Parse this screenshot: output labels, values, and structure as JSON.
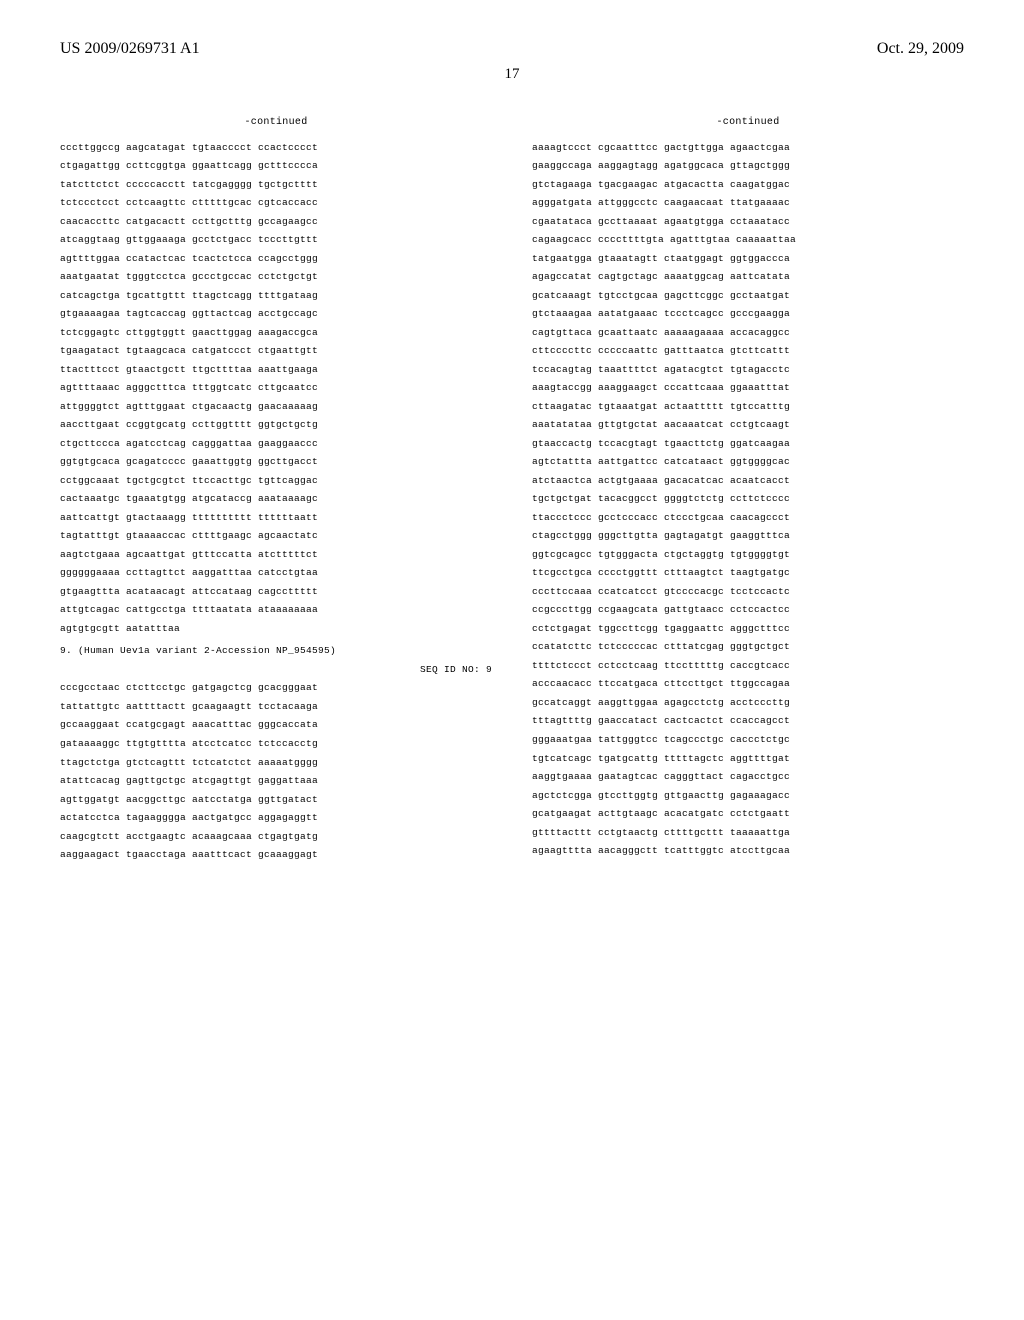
{
  "header": {
    "patent_number": "US 2009/0269731 A1",
    "date": "Oct. 29, 2009",
    "page_number": "17"
  },
  "continued_label": "-continued",
  "left_column": {
    "lines": [
      "cccttggccg aagcatagat tgtaacccct ccactcccct",
      "ctgagattgg ccttcggtga ggaattcagg gctttcccca",
      "tatcttctct cccccacctt tatcgagggg tgctgctttt",
      "tctccctcct cctcaagttc ctttttgcac cgtcaccacc",
      "caacaccttc catgacactt ccttgctttg gccagaagcc",
      "atcaggtaag gttggaaaga gcctctgacc tcccttgttt",
      "agttttggaa ccatactcac tcactctcca ccagcctggg",
      "aaatgaatat tgggtcctca gccctgccac cctctgctgt",
      "catcagctga tgcattgttt ttagctcagg ttttgataag",
      "gtgaaaagaa tagtcaccag ggttactcag acctgccagc",
      "tctcggagtc cttggtggtt gaacttggag aaagaccgca",
      "tgaagatact tgtaagcaca catgatccct ctgaattgtt",
      "ttactttcct gtaactgctt ttgcttttaa aaattgaaga",
      "agttttaaac agggctttca tttggtcatc cttgcaatcc",
      "attggggtct agtttggaat ctgacaactg gaacaaaaag",
      "aaccttgaat ccggtgcatg ccttggtttt ggtgctgctg",
      "ctgcttccca agatcctcag cagggattaa gaaggaaccc",
      "ggtgtgcaca gcagatcccc gaaattggtg ggcttgacct",
      "cctggcaaat tgctgcgtct ttccacttgc tgttcaggac",
      "cactaaatgc tgaaatgtgg atgcataccg aaataaaagc",
      "aattcattgt gtactaaagg tttttttttt ttttttaatt",
      "tagtatttgt gtaaaaccac cttttgaagc agcaactatc",
      "aagtctgaaa agcaattgat gtttccatta atctttttct",
      "ggggggaaaa ccttagttct aaggatttaa catcctgtaa",
      "gtgaagttta acataacagt attccataag cagccttttt",
      "attgtcagac cattgcctga ttttaatata ataaaaaaaa",
      "agtgtgcgtt aatatttaa"
    ],
    "seq_header": "9. (Human Uev1a variant 2-Accession NP_954595)",
    "seq_id": "SEQ ID NO: 9",
    "lines2": [
      "cccgcctaac ctcttcctgc gatgagctcg gcacgggaat",
      "tattattgtc aattttactt gcaagaagtt tcctacaaga",
      "gccaaggaat ccatgcgagt aaacatttac gggcaccata",
      "gataaaaggc ttgtgtttta atcctcatcc tctccacctg",
      "ttagctctga gtctcagttt tctcatctct aaaaatgggg",
      "atattcacag gagttgctgc atcgagttgt gaggattaaa",
      "agttggatgt aacggcttgc aatcctatga ggttgatact",
      "actatcctca tagaagggga aactgatgcc aggagaggtt",
      "caagcgtctt acctgaagtc acaaagcaaa ctgagtgatg",
      "aaggaagact tgaacctaga aaatttcact gcaaaggagt"
    ]
  },
  "right_column": {
    "lines": [
      "aaaagtccct cgcaatttcc gactgttgga agaactcgaa",
      "gaaggccaga aaggagtagg agatggcaca gttagctggg",
      "gtctagaaga tgacgaagac atgacactta caagatggac",
      "agggatgata attgggcctc caagaacaat ttatgaaaac",
      "cgaatataca gccttaaaat agaatgtgga cctaaatacc",
      "cagaagcacc ccccttttgta agatttgtaa caaaaattaa",
      "tatgaatgga gtaaatagtt ctaatggagt ggtggaccca",
      "agagccatat cagtgctagc aaaatggcag aattcatata",
      "gcatcaaagt tgtcctgcaa gagcttcggc gcctaatgat",
      "gtctaaagaa aatatgaaac tccctcagcc gcccgaagga",
      "cagtgttaca gcaattaatc aaaaagaaaa accacaggcc",
      "cttccccttc cccccaattc gatttaatca gtcttcattt",
      "tccacagtag taaattttct agatacgtct tgtagacctc",
      "aaagtaccgg aaaggaagct cccattcaaa ggaaatttat",
      "cttaagatac tgtaaatgat actaattttt tgtccatttg",
      "aaatatataa gttgtgctat aacaaatcat cctgtcaagt",
      "gtaaccactg tccacgtagt tgaacttctg ggatcaagaa",
      "agtctattta aattgattcc catcataact ggtggggcac",
      "atctaactca actgtgaaaa gacacatcac acaatcacct",
      "tgctgctgat tacacggcct ggggtctctg ccttctcccc",
      "ttaccctccc gcctcccacc ctccctgcaa caacagccct",
      "ctagcctggg gggcttgtta gagtagatgt gaaggtttca",
      "ggtcgcagcc tgtgggacta ctgctaggtg tgtggggtgt",
      "ttcgcctgca cccctggttt ctttaagtct taagtgatgc",
      "cccttccaaa ccatcatcct gtccccacgc tcctccactc",
      "ccgcccttgg ccgaagcata gattgtaacc cctccactcc",
      "cctctgagat tggccttcgg tgaggaattc agggctttcc",
      "ccatatcttc tctcccccac ctttatcgag gggtgctgct",
      "ttttctccct cctcctcaag ttcctttttg caccgtcacc",
      "acccaacacc ttccatgaca cttccttgct ttggccagaa",
      "gccatcaggt aaggttggaa agagcctctg acctcccttg",
      "tttagttttg gaaccatact cactcactct ccaccagcct",
      "gggaaatgaa tattgggtcc tcagccctgc caccctctgc",
      "tgtcatcagc tgatgcattg tttttagctc aggttttgat",
      "aaggtgaaaa gaatagtcac cagggttact cagacctgcc",
      "agctctcgga gtccttggtg gttgaacttg gagaaagacc",
      "gcatgaagat acttgtaagc acacatgatc cctctgaatt",
      "gttttacttt cctgtaactg cttttgcttt taaaaattga",
      "agaagtttta aacagggctt tcatttggtc atccttgcaa"
    ]
  }
}
